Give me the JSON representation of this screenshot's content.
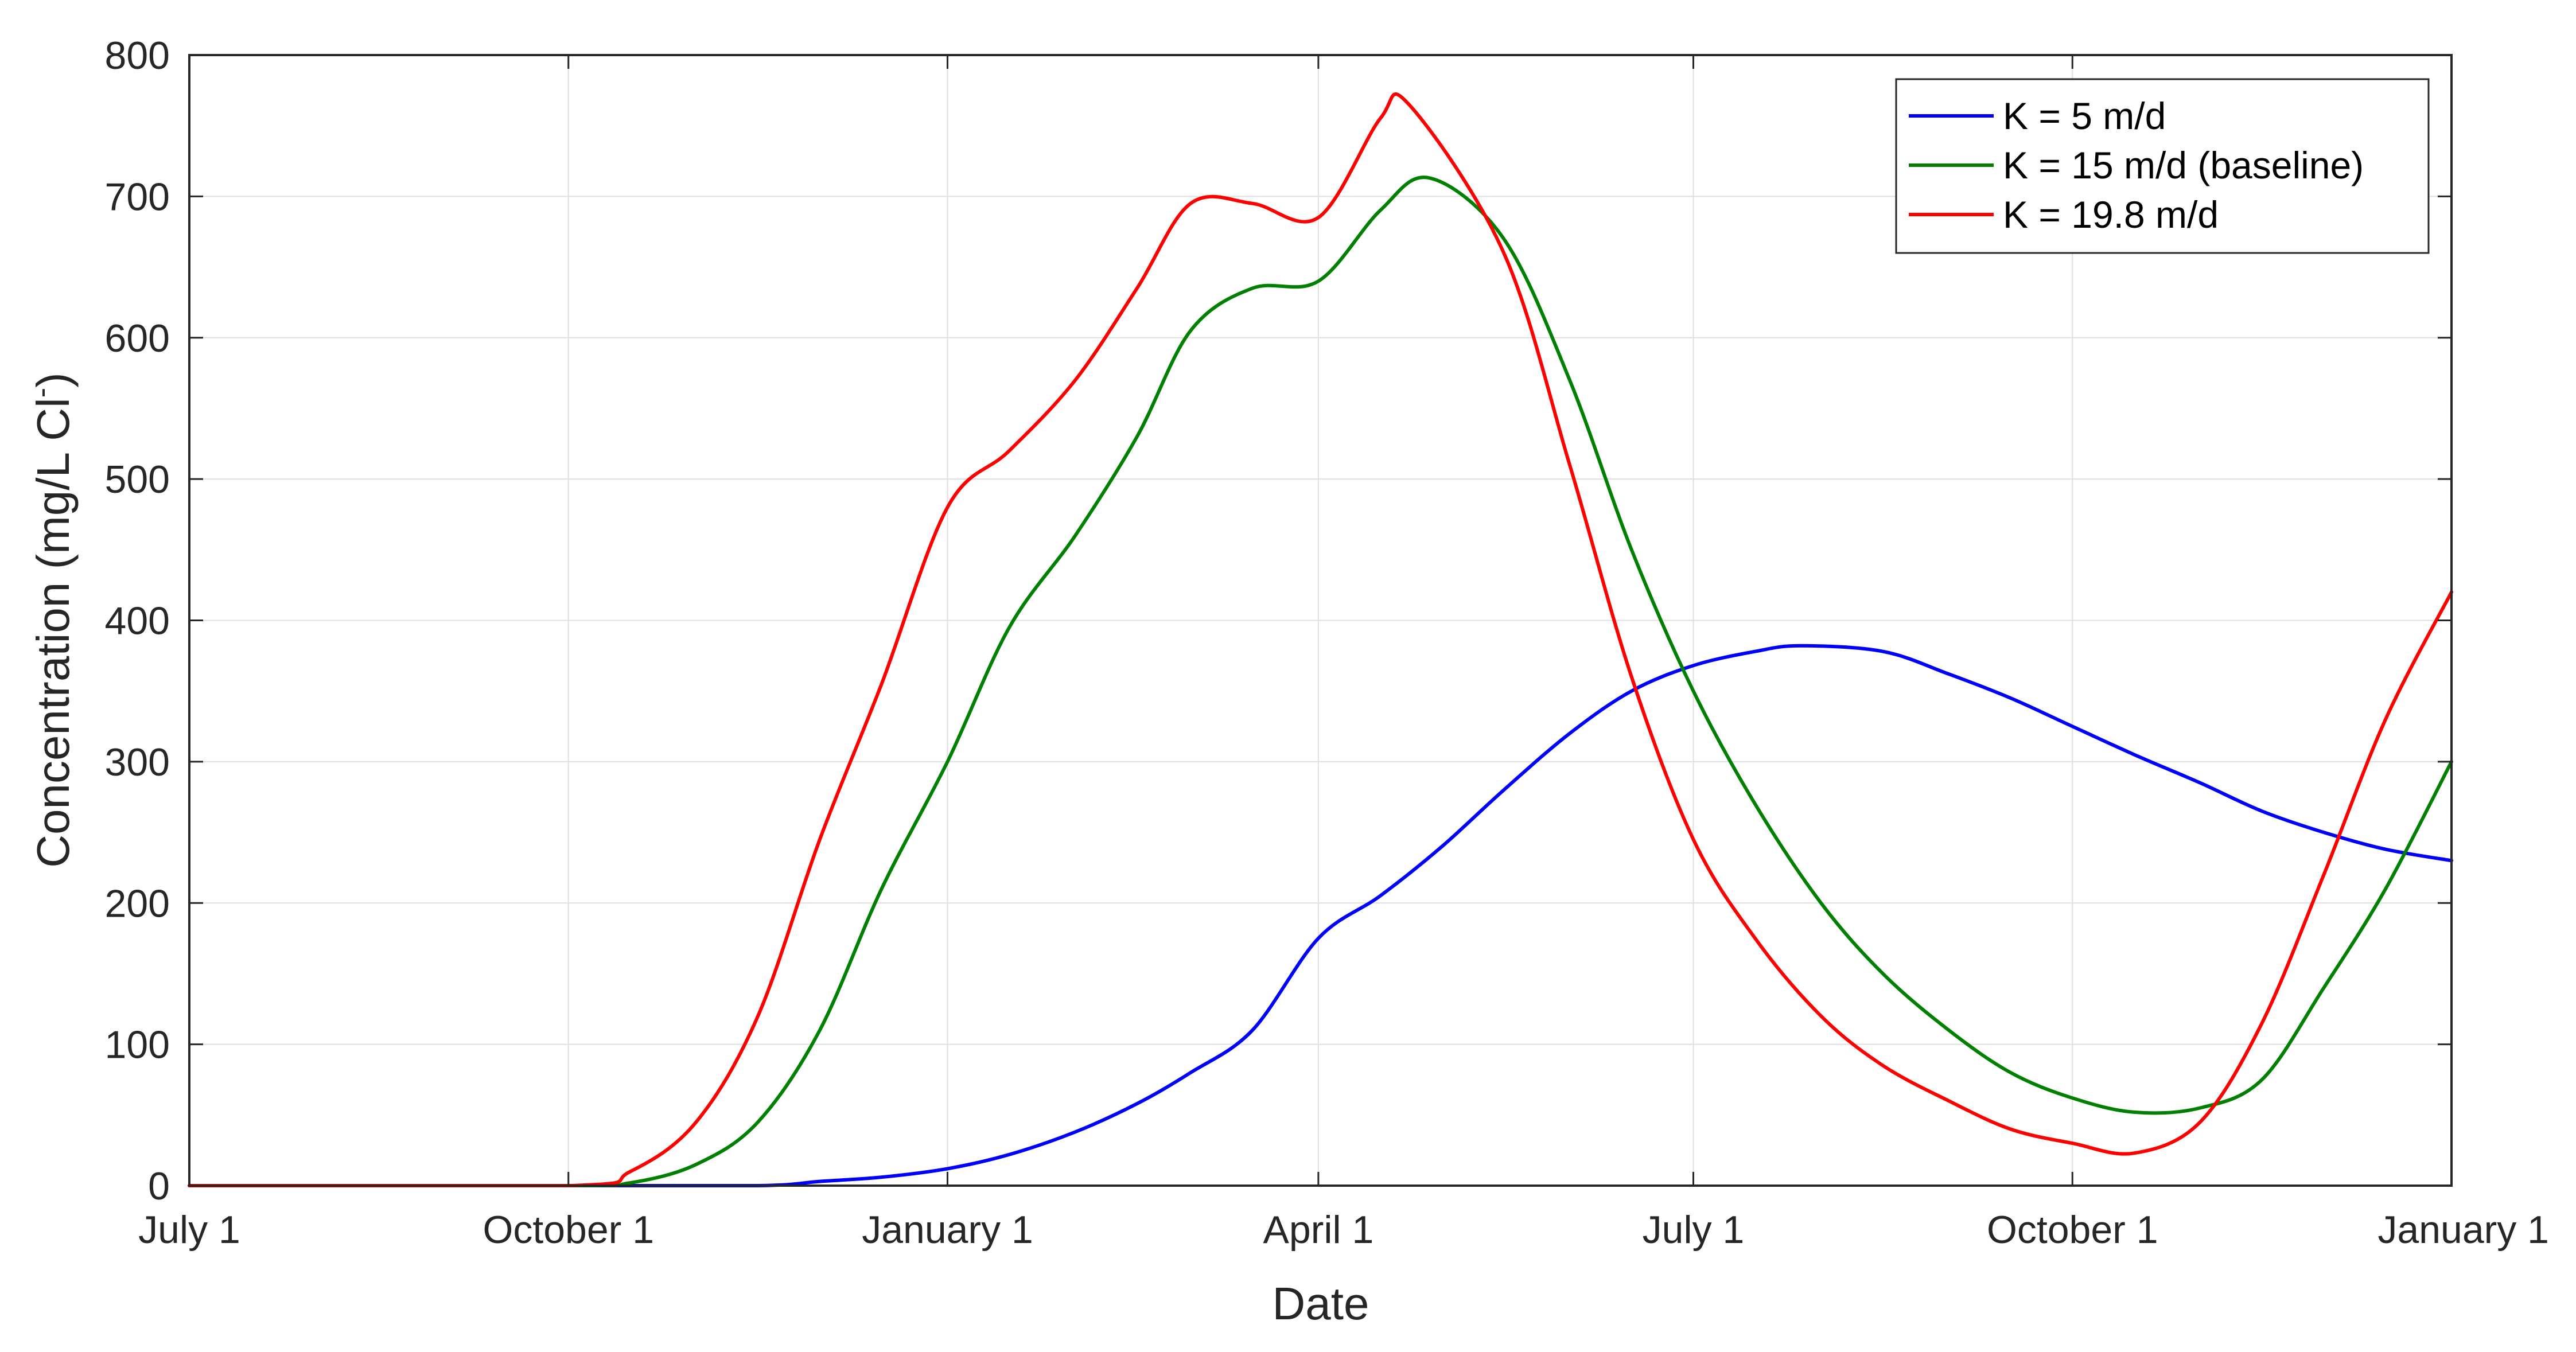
{
  "chart_data": {
    "type": "line",
    "xlabel": "Date",
    "ylabel": "Concentration (mg/L Cl",
    "ylabel_superscript": "-",
    "ylabel_close": ")",
    "ylim": [
      0,
      800
    ],
    "xlim": [
      "2018-07-01",
      "2020-01-01"
    ],
    "grid": true,
    "legend_position": "top-right",
    "x_ticks": [
      {
        "date": "2018-07-01",
        "label": "July 1"
      },
      {
        "date": "2018-10-01",
        "label": "October 1"
      },
      {
        "date": "2019-01-01",
        "label": "January 1"
      },
      {
        "date": "2019-04-01",
        "label": "April 1"
      },
      {
        "date": "2019-07-01",
        "label": "July 1"
      },
      {
        "date": "2019-10-01",
        "label": "October 1"
      },
      {
        "date": "2020-01-01",
        "label": "January 1"
      }
    ],
    "y_ticks": [
      0,
      100,
      200,
      300,
      400,
      500,
      600,
      700,
      800
    ],
    "series": [
      {
        "name": "K = 5 m/d",
        "color": "#0000ff",
        "points": [
          [
            "2018-07-01",
            0
          ],
          [
            "2018-10-01",
            0
          ],
          [
            "2018-11-16",
            0
          ],
          [
            "2018-12-01",
            3
          ],
          [
            "2018-12-16",
            6
          ],
          [
            "2019-01-01",
            12
          ],
          [
            "2019-01-16",
            22
          ],
          [
            "2019-02-01",
            38
          ],
          [
            "2019-02-16",
            58
          ],
          [
            "2019-03-01",
            80
          ],
          [
            "2019-03-16",
            110
          ],
          [
            "2019-04-01",
            175
          ],
          [
            "2019-04-16",
            205
          ],
          [
            "2019-05-01",
            240
          ],
          [
            "2019-05-16",
            280
          ],
          [
            "2019-06-01",
            320
          ],
          [
            "2019-06-16",
            350
          ],
          [
            "2019-07-01",
            368
          ],
          [
            "2019-07-16",
            378
          ],
          [
            "2019-07-27",
            382
          ],
          [
            "2019-08-16",
            378
          ],
          [
            "2019-09-01",
            362
          ],
          [
            "2019-09-16",
            345
          ],
          [
            "2019-10-01",
            325
          ],
          [
            "2019-10-16",
            305
          ],
          [
            "2019-11-01",
            285
          ],
          [
            "2019-11-16",
            265
          ],
          [
            "2019-12-01",
            250
          ],
          [
            "2019-12-16",
            238
          ],
          [
            "2020-01-01",
            230
          ]
        ]
      },
      {
        "name": "K = 15 m/d (baseline)",
        "color": "#008000",
        "points": [
          [
            "2018-07-01",
            0
          ],
          [
            "2018-10-01",
            0
          ],
          [
            "2018-10-16",
            2
          ],
          [
            "2018-11-01",
            15
          ],
          [
            "2018-11-16",
            45
          ],
          [
            "2018-12-01",
            110
          ],
          [
            "2018-12-16",
            210
          ],
          [
            "2019-01-01",
            300
          ],
          [
            "2019-01-16",
            395
          ],
          [
            "2019-02-01",
            460
          ],
          [
            "2019-02-16",
            530
          ],
          [
            "2019-03-01",
            605
          ],
          [
            "2019-03-16",
            635
          ],
          [
            "2019-04-01",
            640
          ],
          [
            "2019-04-16",
            690
          ],
          [
            "2019-04-28",
            713
          ],
          [
            "2019-05-16",
            670
          ],
          [
            "2019-06-01",
            570
          ],
          [
            "2019-06-16",
            450
          ],
          [
            "2019-07-01",
            350
          ],
          [
            "2019-07-16",
            270
          ],
          [
            "2019-08-01",
            200
          ],
          [
            "2019-08-16",
            150
          ],
          [
            "2019-09-01",
            110
          ],
          [
            "2019-09-16",
            80
          ],
          [
            "2019-10-01",
            62
          ],
          [
            "2019-10-16",
            52
          ],
          [
            "2019-11-01",
            55
          ],
          [
            "2019-11-16",
            75
          ],
          [
            "2019-12-01",
            140
          ],
          [
            "2019-12-16",
            210
          ],
          [
            "2020-01-01",
            300
          ]
        ]
      },
      {
        "name": "K = 19.8 m/d",
        "color": "#ff0000",
        "points": [
          [
            "2018-07-01",
            0
          ],
          [
            "2018-10-01",
            0
          ],
          [
            "2018-10-16",
            10
          ],
          [
            "2018-11-01",
            45
          ],
          [
            "2018-11-16",
            120
          ],
          [
            "2018-12-01",
            245
          ],
          [
            "2018-12-16",
            355
          ],
          [
            "2019-01-01",
            480
          ],
          [
            "2019-01-16",
            520
          ],
          [
            "2019-02-01",
            570
          ],
          [
            "2019-02-16",
            635
          ],
          [
            "2019-03-01",
            695
          ],
          [
            "2019-03-16",
            695
          ],
          [
            "2019-04-01",
            685
          ],
          [
            "2019-04-16",
            755
          ],
          [
            "2019-04-23",
            765
          ],
          [
            "2019-05-16",
            660
          ],
          [
            "2019-06-01",
            510
          ],
          [
            "2019-06-16",
            360
          ],
          [
            "2019-07-01",
            245
          ],
          [
            "2019-07-16",
            175
          ],
          [
            "2019-08-01",
            120
          ],
          [
            "2019-08-16",
            85
          ],
          [
            "2019-09-01",
            60
          ],
          [
            "2019-09-16",
            40
          ],
          [
            "2019-10-01",
            30
          ],
          [
            "2019-10-16",
            23
          ],
          [
            "2019-11-01",
            45
          ],
          [
            "2019-11-16",
            115
          ],
          [
            "2019-12-01",
            220
          ],
          [
            "2019-12-16",
            330
          ],
          [
            "2020-01-01",
            420
          ]
        ]
      }
    ]
  }
}
